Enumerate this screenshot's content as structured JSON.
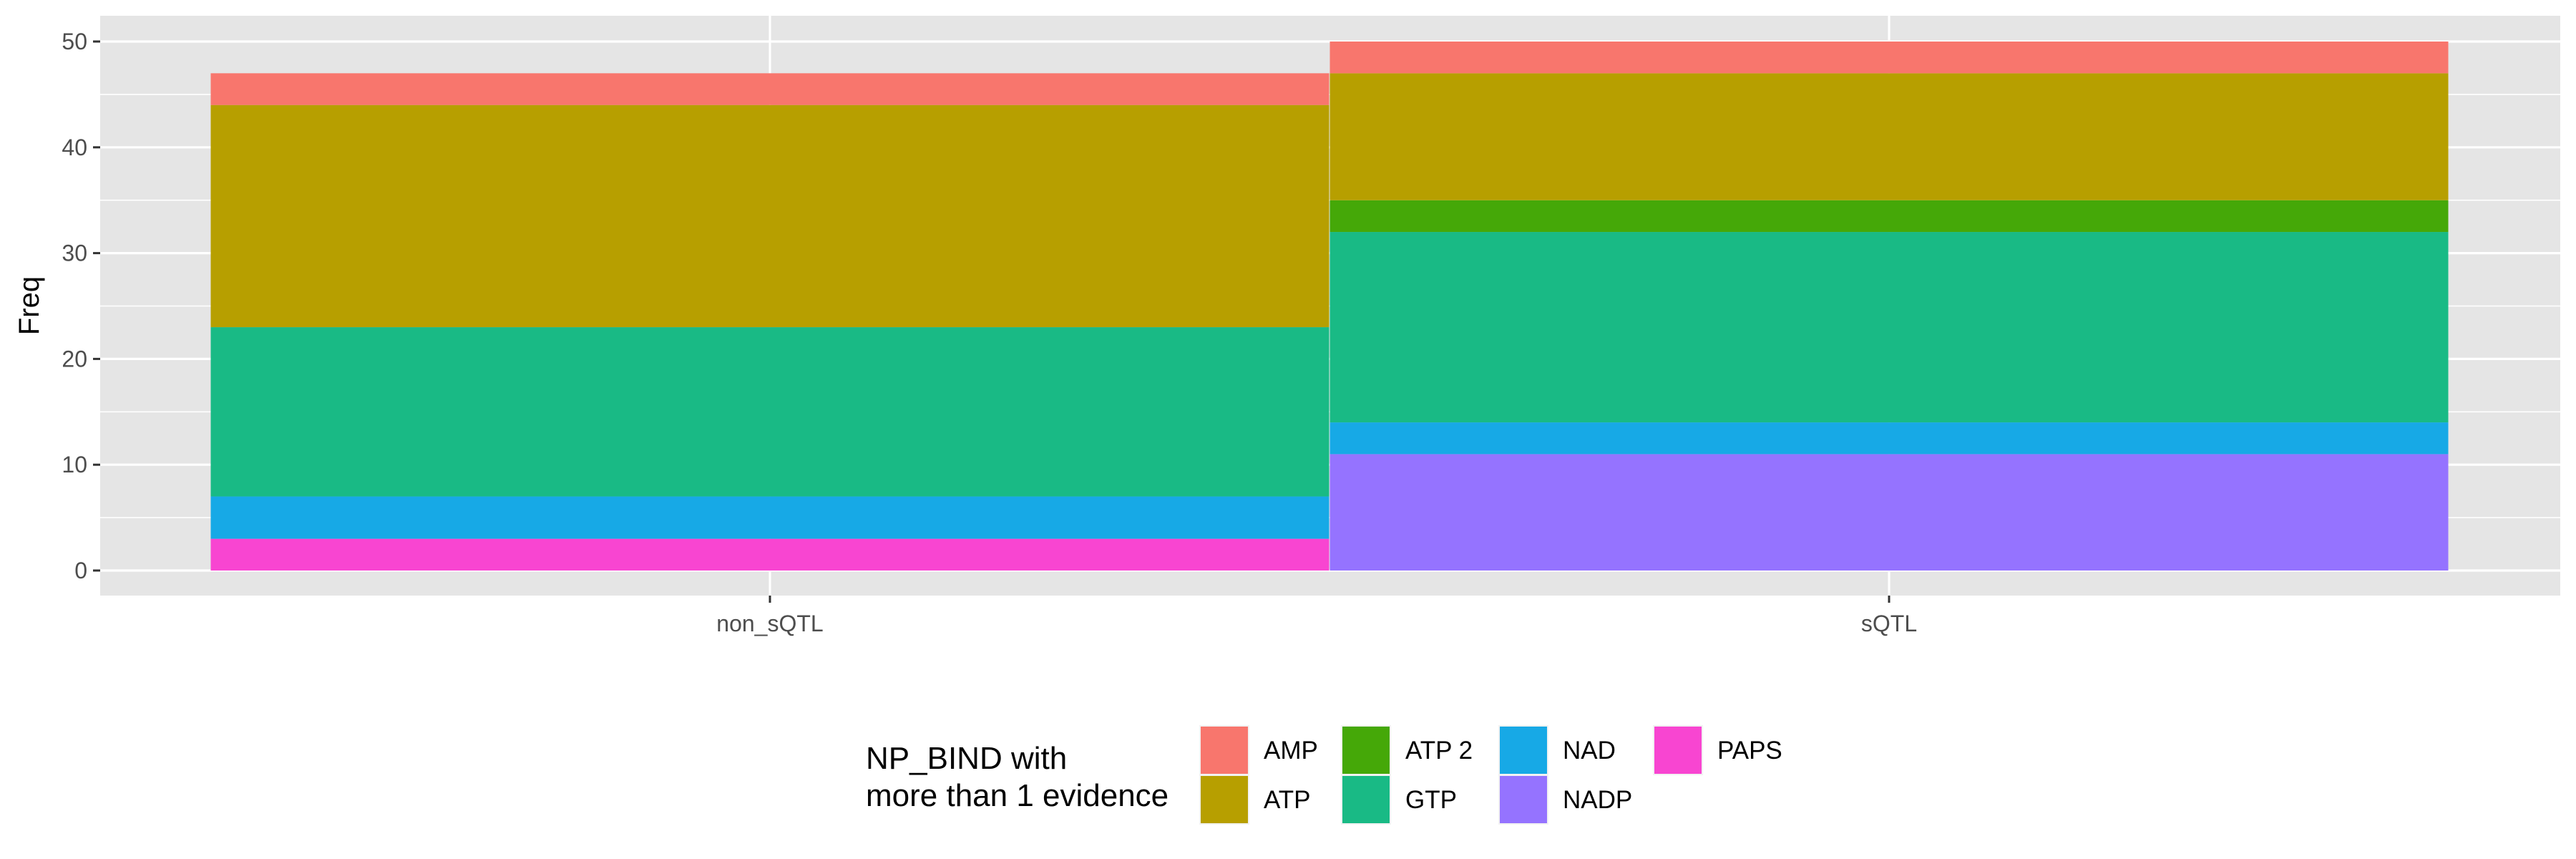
{
  "chart_data": {
    "type": "bar",
    "stacked": true,
    "categories": [
      "non_sQTL",
      "sQTL"
    ],
    "series": [
      {
        "name": "AMP",
        "color": "#F8766D",
        "values": [
          3,
          3
        ]
      },
      {
        "name": "ATP",
        "color": "#B79F00",
        "values": [
          21,
          12
        ]
      },
      {
        "name": "ATP 2",
        "color": "#45A808",
        "values": [
          0,
          3
        ]
      },
      {
        "name": "GTP",
        "color": "#19BA85",
        "values": [
          16,
          18
        ]
      },
      {
        "name": "NAD",
        "color": "#17A9E6",
        "values": [
          4,
          3
        ]
      },
      {
        "name": "NADP",
        "color": "#9573FF",
        "values": [
          0,
          11
        ]
      },
      {
        "name": "PAPS",
        "color": "#F845D1",
        "values": [
          3,
          0
        ]
      }
    ],
    "stack_order_bottom_to_top": [
      "PAPS",
      "NADP",
      "NAD",
      "GTP",
      "ATP 2",
      "ATP",
      "AMP"
    ],
    "totals": [
      47,
      50
    ],
    "xlabel": "",
    "ylabel": "Freq",
    "ylim": [
      0,
      52.5
    ],
    "yticks": [
      0,
      10,
      20,
      30,
      40,
      50
    ],
    "grid": true,
    "panel_background": "#E5E5E5",
    "legend": {
      "title_lines": [
        "NP_BIND with",
        "more than 1 evidence"
      ],
      "position": "bottom",
      "columns": [
        [
          "AMP",
          "ATP"
        ],
        [
          "ATP 2",
          "GTP"
        ],
        [
          "NAD",
          "NADP"
        ],
        [
          "PAPS"
        ]
      ]
    }
  }
}
